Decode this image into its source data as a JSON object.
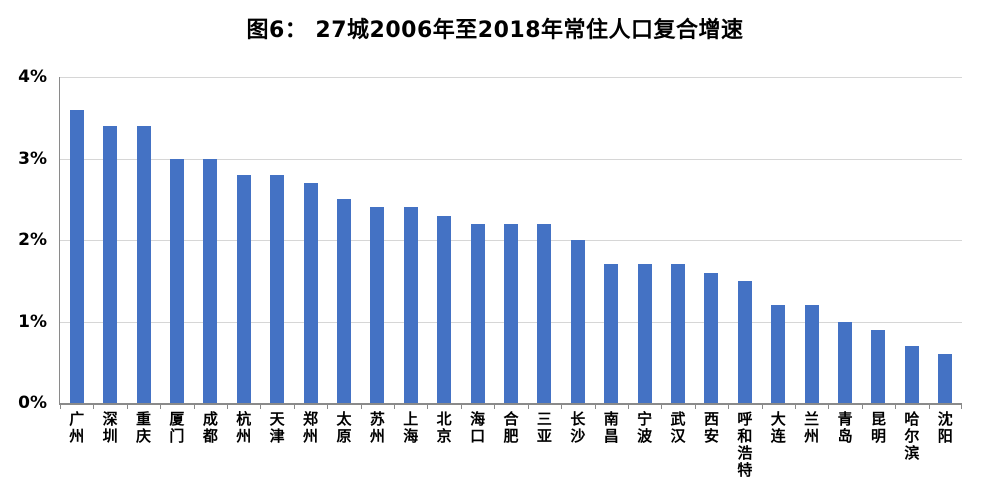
{
  "figure": {
    "title": "图6： 27城2006年至2018年常住人口复合增速"
  },
  "chart_data": {
    "type": "bar",
    "title": "图6： 27城2006年至2018年常住人口复合增速",
    "categories": [
      "广州",
      "深圳",
      "重庆",
      "厦门",
      "成都",
      "杭州",
      "天津",
      "郑州",
      "太原",
      "苏州",
      "上海",
      "北京",
      "海口",
      "合肥",
      "三亚",
      "长沙",
      "南昌",
      "宁波",
      "武汉",
      "西安",
      "呼和浩特",
      "大连",
      "兰州",
      "青岛",
      "昆明",
      "哈尔滨",
      "沈阳"
    ],
    "values": [
      3.6,
      3.4,
      3.4,
      3.0,
      3.0,
      2.8,
      2.8,
      2.7,
      2.5,
      2.4,
      2.4,
      2.3,
      2.2,
      2.2,
      2.2,
      2.0,
      1.7,
      1.7,
      1.7,
      1.6,
      1.5,
      1.2,
      1.2,
      1.0,
      0.9,
      0.7,
      0.6
    ],
    "unit": "%",
    "xlabel": "",
    "ylabel": "",
    "ylim": [
      0,
      4
    ],
    "ytick_step": 1,
    "ytick_labels": [
      "0%",
      "1%",
      "2%",
      "3%",
      "4%"
    ],
    "grid": true,
    "legend": "none",
    "bar_color": "#4472C4",
    "axis_color": "#8a8a8a",
    "gridline_color": "#d6d6d6",
    "text_color": "#000000"
  }
}
